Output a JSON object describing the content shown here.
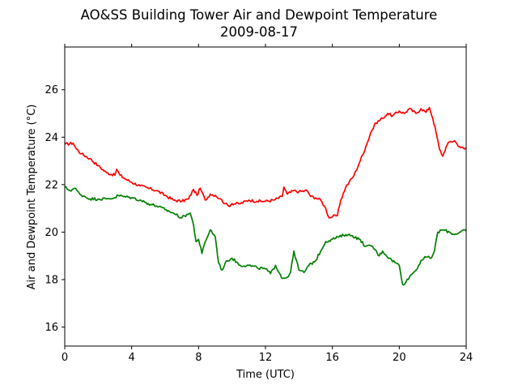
{
  "chart_data": {
    "type": "line",
    "title": "AO&SS Building Tower Air and Dewpoint Temperature",
    "subtitle": "2009-08-17",
    "xlabel": "Time (UTC)",
    "ylabel": "Air and Dewpoint Temperature (°C)",
    "xlim": [
      0,
      24
    ],
    "ylim": [
      15.2,
      27.8
    ],
    "xticks": [
      0,
      4,
      8,
      12,
      16,
      20,
      24
    ],
    "yticks": [
      16,
      18,
      20,
      22,
      24,
      26
    ],
    "grid": false,
    "legend": "none",
    "series": [
      {
        "color": "#ff0000",
        "x": [
          0,
          0.5,
          0.7,
          1.0,
          1.5,
          2.0,
          2.5,
          3.0,
          3.1,
          3.3,
          3.6,
          4.0,
          4.5,
          5.0,
          5.5,
          6.0,
          6.5,
          7.0,
          7.4,
          7.7,
          7.9,
          8.1,
          8.4,
          8.7,
          9.0,
          9.3,
          9.6,
          9.8,
          10.0,
          10.5,
          11.0,
          11.5,
          12.0,
          12.5,
          13.0,
          13.1,
          13.3,
          13.7,
          14.0,
          14.5,
          14.7,
          15.0,
          15.3,
          15.6,
          15.8,
          16.0,
          16.3,
          16.5,
          16.8,
          17.0,
          17.3,
          17.6,
          18.0,
          18.3,
          18.6,
          19.0,
          19.3,
          19.6,
          20.0,
          20.3,
          20.6,
          21.0,
          21.3,
          21.6,
          21.8,
          22.0,
          22.2,
          22.4,
          22.6,
          22.8,
          23.0,
          23.3,
          23.6,
          23.9,
          24.0
        ],
        "y": [
          23.7,
          23.75,
          23.5,
          23.3,
          23.1,
          22.8,
          22.5,
          22.4,
          22.65,
          22.4,
          22.25,
          22.1,
          21.95,
          21.85,
          21.75,
          21.55,
          21.35,
          21.3,
          21.4,
          21.8,
          21.55,
          21.85,
          21.35,
          21.6,
          21.55,
          21.4,
          21.2,
          21.1,
          21.2,
          21.2,
          21.35,
          21.3,
          21.3,
          21.35,
          21.5,
          21.9,
          21.6,
          21.75,
          21.7,
          21.75,
          21.5,
          21.45,
          21.35,
          21.0,
          20.6,
          20.65,
          20.7,
          21.35,
          21.9,
          22.1,
          22.4,
          22.9,
          23.6,
          24.2,
          24.6,
          24.8,
          25.0,
          24.9,
          25.1,
          25.0,
          25.2,
          25.0,
          25.2,
          25.05,
          25.25,
          24.8,
          24.2,
          23.5,
          23.2,
          23.6,
          23.8,
          23.85,
          23.6,
          23.5,
          23.55
        ]
      },
      {
        "color": "#008000",
        "x": [
          0,
          0.3,
          0.6,
          0.9,
          1.2,
          1.5,
          2.0,
          2.5,
          3.0,
          3.2,
          3.5,
          4.0,
          4.5,
          5.0,
          5.5,
          6.0,
          6.5,
          7.0,
          7.3,
          7.5,
          7.7,
          7.85,
          8.0,
          8.2,
          8.4,
          8.7,
          9.0,
          9.2,
          9.4,
          9.7,
          10.0,
          10.5,
          11.0,
          11.5,
          12.0,
          12.3,
          12.6,
          12.9,
          13.0,
          13.3,
          13.5,
          13.7,
          14.0,
          14.3,
          14.6,
          15.0,
          15.3,
          15.6,
          16.0,
          16.4,
          16.8,
          17.2,
          17.6,
          18.0,
          18.4,
          18.8,
          19.0,
          19.4,
          19.8,
          20.0,
          20.2,
          20.4,
          20.7,
          21.0,
          21.3,
          21.6,
          21.9,
          22.1,
          22.3,
          22.6,
          23.0,
          23.3,
          23.6,
          23.9,
          24.0
        ],
        "y": [
          21.9,
          21.75,
          21.85,
          21.6,
          21.5,
          21.4,
          21.4,
          21.4,
          21.45,
          21.55,
          21.5,
          21.45,
          21.35,
          21.2,
          21.1,
          20.95,
          20.8,
          20.6,
          20.75,
          20.8,
          20.3,
          19.6,
          19.7,
          19.1,
          19.6,
          20.1,
          19.8,
          18.7,
          18.4,
          18.8,
          18.9,
          18.6,
          18.6,
          18.5,
          18.45,
          18.25,
          18.6,
          18.2,
          18.05,
          18.1,
          18.3,
          19.2,
          18.4,
          18.3,
          18.6,
          18.8,
          19.2,
          19.6,
          19.7,
          19.8,
          19.9,
          19.85,
          19.7,
          19.4,
          19.4,
          19.0,
          19.2,
          18.9,
          18.7,
          18.6,
          17.8,
          17.9,
          18.2,
          18.4,
          18.8,
          18.95,
          18.9,
          19.2,
          20.0,
          20.1,
          20.0,
          19.9,
          20.0,
          20.1,
          20.05
        ]
      }
    ]
  }
}
